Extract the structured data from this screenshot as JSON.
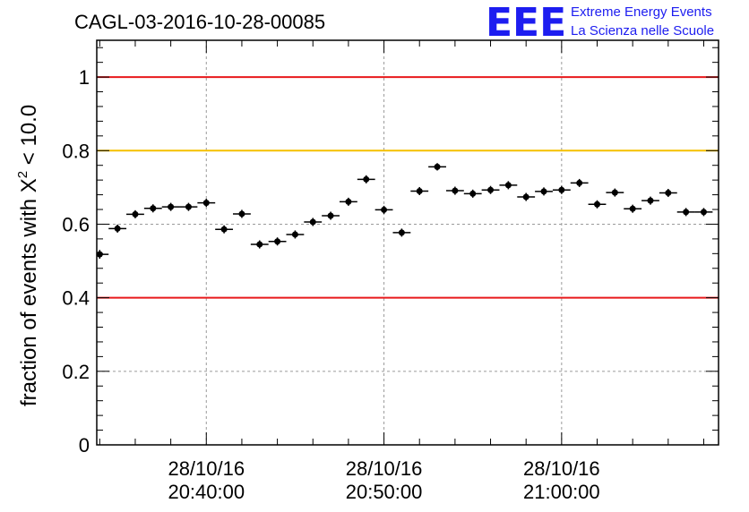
{
  "header": {
    "title": "CAGL-03-2016-10-28-00085",
    "logo_text": "EEE",
    "logo_line1": "Extreme Energy Events",
    "logo_line2": "La Scienza nelle Scuole"
  },
  "colors": {
    "logo": "#1d1df0",
    "limit_red": "#e8191b",
    "limit_yellow": "#f5c000",
    "marker": "#000000",
    "grid": "#9a9a9a"
  },
  "chart_data": {
    "type": "scatter",
    "title": "CAGL-03-2016-10-28-00085",
    "ylabel_prefix": "fraction of events with ",
    "ylabel_symbol": "X",
    "ylabel_sup": "2",
    "ylabel_suffix": " < 10.0",
    "ylim": [
      0,
      1.1
    ],
    "xlim": [
      "20:33:50",
      "21:08:50"
    ],
    "y_ticks": [
      "0",
      "0.2",
      "0.4",
      "0.6",
      "0.8",
      "1"
    ],
    "x_ticks": [
      {
        "date": "28/10/16",
        "time": "20:40:00"
      },
      {
        "date": "28/10/16",
        "time": "20:50:00"
      },
      {
        "date": "28/10/16",
        "time": "21:00:00"
      }
    ],
    "grid": true,
    "bin_minutes": 1,
    "reference_lines": [
      {
        "y": 1.0,
        "color": "red"
      },
      {
        "y": 0.8,
        "color": "yellow"
      },
      {
        "y": 0.4,
        "color": "red"
      }
    ],
    "series": [
      {
        "x": [
          "20:34:00",
          "20:35:00",
          "20:36:00",
          "20:37:00",
          "20:38:00",
          "20:39:00",
          "20:40:00",
          "20:41:00",
          "20:42:00",
          "20:43:00",
          "20:44:00",
          "20:45:00",
          "20:46:00",
          "20:47:00",
          "20:48:00",
          "20:49:00",
          "20:50:00",
          "20:51:00",
          "20:52:00",
          "20:53:00",
          "20:54:00",
          "20:55:00",
          "20:56:00",
          "20:57:00",
          "20:58:00",
          "20:59:00",
          "21:00:00",
          "21:01:00",
          "21:02:00",
          "21:03:00",
          "21:04:00",
          "21:05:00",
          "21:06:00",
          "21:07:00",
          "21:08:00"
        ],
        "y": [
          0.518,
          0.588,
          0.627,
          0.643,
          0.647,
          0.647,
          0.658,
          0.586,
          0.628,
          0.545,
          0.553,
          0.572,
          0.606,
          0.623,
          0.661,
          0.722,
          0.639,
          0.577,
          0.69,
          0.756,
          0.691,
          0.683,
          0.693,
          0.706,
          0.674,
          0.689,
          0.693,
          0.712,
          0.654,
          0.686,
          0.642,
          0.664,
          0.685,
          0.633,
          0.633
        ],
        "yerr": [
          0.012,
          0.011,
          0.011,
          0.011,
          0.011,
          0.011,
          0.011,
          0.011,
          0.011,
          0.011,
          0.011,
          0.011,
          0.011,
          0.011,
          0.011,
          0.011,
          0.011,
          0.011,
          0.011,
          0.01,
          0.011,
          0.011,
          0.011,
          0.011,
          0.011,
          0.011,
          0.011,
          0.011,
          0.011,
          0.011,
          0.011,
          0.011,
          0.011,
          0.011,
          0.011
        ]
      }
    ]
  }
}
